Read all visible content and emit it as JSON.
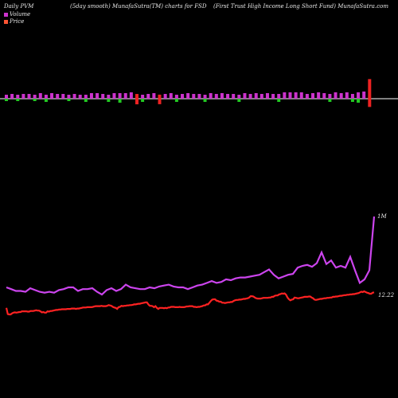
{
  "header": {
    "left": "Daily PVM",
    "center": "(5day smooth) MunafaSutra(TM) charts for FSD",
    "right": "(First Trust High Income   Long Short Fund) MunafaSutra.com"
  },
  "legend": {
    "volume_label": "Volume",
    "price_label": "Price",
    "volume_color": "#cc33cc",
    "price_color": "#ff5533"
  },
  "colors": {
    "bar_normal": "#cc33cc",
    "bar_up": "#22cc22",
    "bar_down": "#ee2222",
    "volume_line": "#cc44ee",
    "price_line": "#ff2222",
    "baseline": "#ffffff"
  },
  "chart_data": {
    "type": "line",
    "title": "",
    "volume_axis_label": "1M",
    "price_axis_label": "12.22",
    "volume_series": [
      21,
      19,
      17,
      17,
      16,
      20,
      18,
      16,
      15,
      16,
      15,
      18,
      19,
      21,
      21,
      17,
      19,
      19,
      20,
      16,
      13,
      18,
      20,
      17,
      19,
      24,
      21,
      20,
      19,
      19,
      21,
      20,
      22,
      23,
      24,
      22,
      21,
      21,
      19,
      21,
      23,
      24,
      26,
      28,
      26,
      27,
      30,
      29,
      31,
      32,
      32,
      33,
      34,
      35,
      38,
      41,
      35,
      31,
      33,
      35,
      36,
      43,
      45,
      46,
      44,
      48,
      60,
      47,
      51,
      43,
      45,
      43,
      55,
      40,
      26,
      30,
      40,
      100
    ],
    "price_series": [
      50,
      32,
      31,
      31,
      34,
      36,
      37,
      36,
      37,
      38,
      38,
      40,
      40,
      40,
      40,
      39,
      39,
      41,
      41,
      41,
      42,
      43,
      42,
      42,
      40,
      37,
      38,
      36,
      36,
      40,
      39,
      41,
      41,
      42,
      43,
      44,
      44,
      45,
      45,
      46,
      46,
      46,
      46,
      47,
      47,
      47,
      48,
      48,
      48,
      47,
      48,
      48,
      49,
      50,
      51,
      51,
      51,
      52,
      52,
      52,
      52,
      53,
      54,
      55,
      55,
      55,
      55,
      56,
      55,
      55,
      55,
      56,
      58,
      57,
      56,
      53,
      51,
      50,
      47,
      52,
      53,
      56,
      55,
      56,
      56,
      57,
      57,
      58,
      58,
      59,
      60,
      60,
      61,
      62,
      62,
      63,
      64,
      65,
      66,
      66,
      60,
      56,
      56,
      55,
      52,
      55,
      50,
      47,
      50,
      50,
      50,
      49,
      50,
      49,
      51,
      51,
      53,
      53,
      53,
      52,
      52,
      52,
      53,
      52,
      52,
      52,
      53,
      54,
      54,
      55,
      55,
      55,
      53,
      53,
      52,
      53,
      53,
      54,
      55,
      57,
      57,
      60,
      60,
      65,
      70,
      74,
      75,
      75,
      71,
      70,
      68,
      68,
      65,
      65,
      64,
      65,
      66,
      66,
      67,
      67,
      70,
      72,
      73,
      73,
      74,
      74,
      75,
      76,
      76,
      77,
      78,
      80,
      84,
      84,
      83,
      80,
      78,
      77,
      77,
      77,
      78,
      79,
      79,
      79,
      79,
      80,
      80,
      82,
      82,
      85,
      86,
      86,
      89,
      90,
      92,
      91,
      92,
      88,
      80,
      75,
      72,
      74,
      75,
      80,
      79,
      78,
      78,
      79,
      80,
      81,
      82,
      82,
      82,
      83,
      83,
      80,
      78,
      74,
      73,
      74,
      75,
      76,
      76,
      77,
      78,
      78,
      79,
      79,
      80,
      80,
      82,
      82,
      83,
      83,
      84,
      85,
      85,
      86,
      87,
      87,
      88,
      88,
      89,
      89,
      90,
      90,
      91,
      92,
      93,
      95,
      97,
      96,
      98,
      96,
      94,
      93,
      91,
      91,
      94,
      95
    ],
    "volume_bars": [
      {
        "h": 5,
        "c": "up"
      },
      {
        "h": 6,
        "c": "normal"
      },
      {
        "h": 5,
        "c": "up"
      },
      {
        "h": 6,
        "c": "normal"
      },
      {
        "h": 6,
        "c": "normal"
      },
      {
        "h": 5,
        "c": "up"
      },
      {
        "h": 7,
        "c": "normal"
      },
      {
        "h": 6,
        "c": "up"
      },
      {
        "h": 7,
        "c": "normal"
      },
      {
        "h": 6,
        "c": "normal"
      },
      {
        "h": 6,
        "c": "normal"
      },
      {
        "h": 5,
        "c": "up"
      },
      {
        "h": 6,
        "c": "normal"
      },
      {
        "h": 5,
        "c": "normal"
      },
      {
        "h": 6,
        "c": "up"
      },
      {
        "h": 7,
        "c": "normal"
      },
      {
        "h": 7,
        "c": "normal"
      },
      {
        "h": 6,
        "c": "normal"
      },
      {
        "h": 6,
        "c": "up"
      },
      {
        "h": 7,
        "c": "normal"
      },
      {
        "h": 8,
        "c": "up"
      },
      {
        "h": 7,
        "c": "normal"
      },
      {
        "h": 8,
        "c": "normal"
      },
      {
        "h": 7,
        "c": "down"
      },
      {
        "h": 6,
        "c": "up"
      },
      {
        "h": 6,
        "c": "normal"
      },
      {
        "h": 7,
        "c": "normal"
      },
      {
        "h": 6,
        "c": "down"
      },
      {
        "h": 6,
        "c": "normal"
      },
      {
        "h": 7,
        "c": "normal"
      },
      {
        "h": 6,
        "c": "up"
      },
      {
        "h": 6,
        "c": "normal"
      },
      {
        "h": 7,
        "c": "normal"
      },
      {
        "h": 6,
        "c": "normal"
      },
      {
        "h": 6,
        "c": "normal"
      },
      {
        "h": 6,
        "c": "up"
      },
      {
        "h": 7,
        "c": "normal"
      },
      {
        "h": 6,
        "c": "normal"
      },
      {
        "h": 7,
        "c": "normal"
      },
      {
        "h": 6,
        "c": "normal"
      },
      {
        "h": 6,
        "c": "normal"
      },
      {
        "h": 6,
        "c": "up"
      },
      {
        "h": 7,
        "c": "normal"
      },
      {
        "h": 6,
        "c": "normal"
      },
      {
        "h": 7,
        "c": "normal"
      },
      {
        "h": 6,
        "c": "normal"
      },
      {
        "h": 7,
        "c": "normal"
      },
      {
        "h": 6,
        "c": "normal"
      },
      {
        "h": 7,
        "c": "up"
      },
      {
        "h": 8,
        "c": "normal"
      },
      {
        "h": 8,
        "c": "normal"
      },
      {
        "h": 8,
        "c": "normal"
      },
      {
        "h": 8,
        "c": "normal"
      },
      {
        "h": 6,
        "c": "normal"
      },
      {
        "h": 7,
        "c": "normal"
      },
      {
        "h": 8,
        "c": "normal"
      },
      {
        "h": 7,
        "c": "normal"
      },
      {
        "h": 7,
        "c": "up"
      },
      {
        "h": 8,
        "c": "normal"
      },
      {
        "h": 7,
        "c": "normal"
      },
      {
        "h": 8,
        "c": "normal"
      },
      {
        "h": 7,
        "c": "up"
      },
      {
        "h": 9,
        "c": "up"
      },
      {
        "h": 9,
        "c": "normal"
      },
      {
        "h": 29,
        "c": "down"
      }
    ]
  }
}
